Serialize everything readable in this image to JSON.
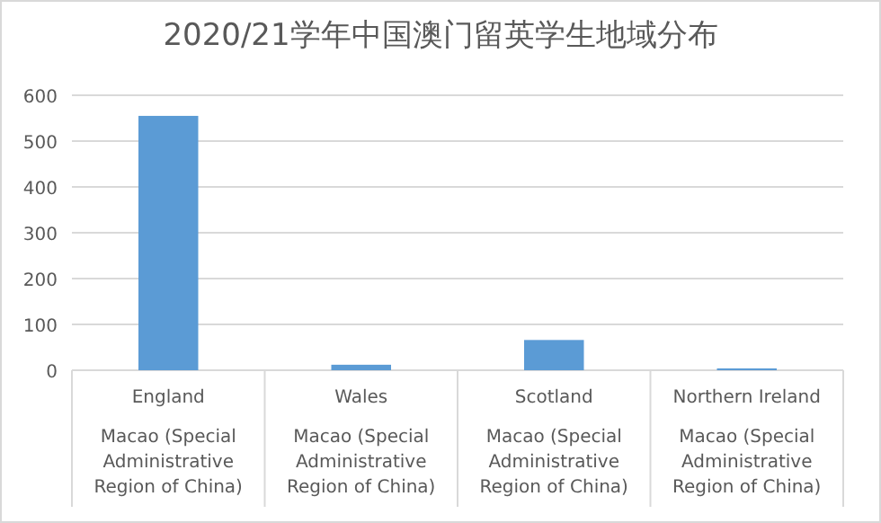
{
  "chart_data": {
    "type": "bar",
    "title": "2020/21学年中国澳门留英学生地域分布",
    "categories": [
      "England",
      "Wales",
      "Scotland",
      "Northern Ireland"
    ],
    "series": [
      {
        "name": "Macao (Special Administrative Region of China)",
        "color": "#5b9bd5",
        "values": [
          555,
          12,
          66,
          4
        ]
      }
    ],
    "ylim": [
      0,
      600
    ],
    "yticks": [
      0,
      100,
      200,
      300,
      400,
      500,
      600
    ],
    "grid": "y",
    "legend": false
  }
}
